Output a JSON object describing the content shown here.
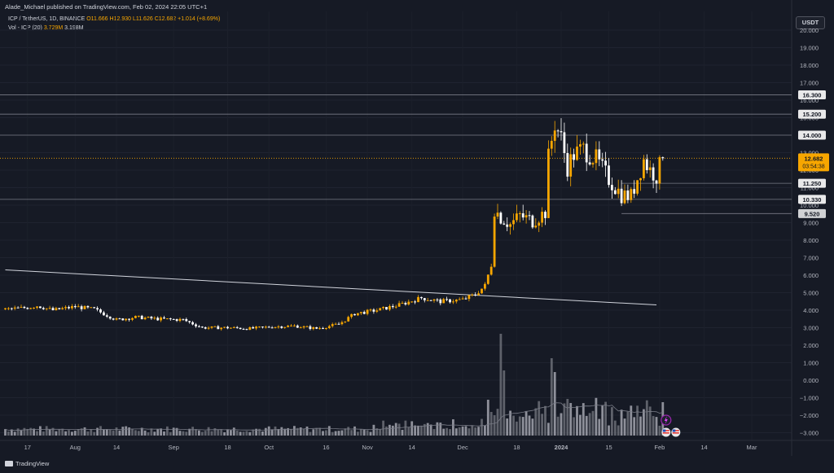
{
  "header": {
    "published": "Alade_Michael published on TradingView.com, Feb 02, 2024 22:05 UTC+1",
    "symbol": "ICP / TetherUS, 1D, BINANCE",
    "ohlc": {
      "o": "O11.666",
      "h": "H12.930",
      "l": "L11.626",
      "c": "C12.682",
      "chg": "+1.014 (+8.69%)"
    },
    "vol_label": "Vol - ICP (20)",
    "vol_values": [
      "3.729M",
      "3.198M"
    ]
  },
  "currency_button": "USDT",
  "footer_brand": "TradingView",
  "colors": {
    "up": "#f7a600",
    "down": "#ffffff",
    "grid": "#2a2e39",
    "bg": "#161a25",
    "level": "#787b86",
    "volume": "#9598a1"
  },
  "chart_data": {
    "type": "candlestick",
    "instrument": "ICP / TetherUS",
    "interval": "1D",
    "exchange": "BINANCE",
    "y_ticks": [
      "20.000",
      "19.000",
      "18.000",
      "17.000",
      "16.000",
      "15.000",
      "14.000",
      "13.000",
      "12.000",
      "11.000",
      "10.000",
      "9.000",
      "8.000",
      "7.000",
      "6.000",
      "5.000",
      "4.000",
      "3.000",
      "2.000",
      "1.000",
      "0.000",
      "−1.000",
      "−2.000",
      "−3.000"
    ],
    "ylim": [
      -3.5,
      20.5
    ],
    "x_ticks": [
      "17",
      "Aug",
      "14",
      "Sep",
      "18",
      "Oct",
      "16",
      "Nov",
      "14",
      "Dec",
      "18",
      "2024",
      "15",
      "Feb",
      "14",
      "Mar"
    ],
    "horizontal_levels": [
      {
        "label": "16.300",
        "value": 16.3
      },
      {
        "label": "15.200",
        "value": 15.2
      },
      {
        "label": "14.000",
        "value": 14.0
      },
      {
        "label": "11.250",
        "value": 11.25
      },
      {
        "label": "10.330",
        "value": 10.33
      },
      {
        "label": "9.520",
        "value": 9.52
      }
    ],
    "last_price": {
      "label": "12.682",
      "countdown": "03:54:38",
      "value": 12.682
    },
    "trendline": {
      "start": {
        "date": "Jul 10",
        "value": 6.3
      },
      "end": {
        "date": "Jan 31",
        "value": 4.3
      }
    },
    "price_path": [
      [
        "Jul 10",
        4.05
      ],
      [
        "Jul 17",
        4.15
      ],
      [
        "Jul 20",
        4.25
      ],
      [
        "Jul 25",
        4.0
      ],
      [
        "Aug 1",
        4.2
      ],
      [
        "Aug 7",
        4.05
      ],
      [
        "Aug 14",
        3.45
      ],
      [
        "Aug 20",
        3.6
      ],
      [
        "Aug 27",
        3.5
      ],
      [
        "Sep 4",
        3.45
      ],
      [
        "Sep 10",
        3.0
      ],
      [
        "Sep 18",
        3.0
      ],
      [
        "Sep 25",
        2.95
      ],
      [
        "Oct 2",
        3.05
      ],
      [
        "Oct 9",
        3.1
      ],
      [
        "Oct 16",
        2.95
      ],
      [
        "Oct 23",
        3.2
      ],
      [
        "Oct 28",
        3.8
      ],
      [
        "Nov 4",
        4.0
      ],
      [
        "Nov 11",
        4.3
      ],
      [
        "Nov 18",
        4.7
      ],
      [
        "Nov 24",
        4.5
      ],
      [
        "Dec 1",
        4.6
      ],
      [
        "Dec 5",
        4.9
      ],
      [
        "Dec 8",
        5.4
      ],
      [
        "Dec 10",
        6.6
      ],
      [
        "Dec 11",
        9.8
      ],
      [
        "Dec 13",
        9.3
      ],
      [
        "Dec 16",
        8.9
      ],
      [
        "Dec 19",
        9.4
      ],
      [
        "Dec 23",
        9.1
      ],
      [
        "Dec 27",
        9.6
      ],
      [
        "Dec 28",
        12.7
      ],
      [
        "Dec 30",
        14.7
      ],
      [
        "Jan 1",
        13.8
      ],
      [
        "Jan 3",
        12.2
      ],
      [
        "Jan 5",
        12.9
      ],
      [
        "Jan 8",
        13.2
      ],
      [
        "Jan 12",
        12.6
      ],
      [
        "Jan 16",
        11.5
      ],
      [
        "Jan 20",
        10.6
      ],
      [
        "Jan 23",
        10.5
      ],
      [
        "Jan 27",
        12.6
      ],
      [
        "Jan 29",
        12.0
      ],
      [
        "Jan 31",
        11.7
      ],
      [
        "Feb 2",
        12.682
      ]
    ],
    "volume_peak_dates": [
      "Dec 13",
      "Dec 14",
      "Dec 29",
      "Dec 30",
      "Jan 3"
    ]
  }
}
